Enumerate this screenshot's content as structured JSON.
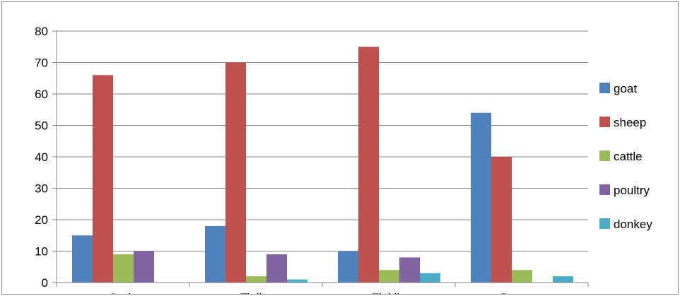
{
  "chart_data": {
    "type": "bar",
    "title": "",
    "xlabel": "",
    "ylabel": "",
    "categories": [
      "Gode",
      "Tinike",
      "Finkile",
      "Damota"
    ],
    "series": [
      {
        "name": "goat",
        "color": "#4F81BD",
        "values": [
          15,
          18,
          10,
          54
        ]
      },
      {
        "name": "sheep",
        "color": "#C0504D",
        "values": [
          66,
          70,
          75,
          40
        ]
      },
      {
        "name": "cattle",
        "color": "#9BBB59",
        "values": [
          9,
          2,
          4,
          4
        ]
      },
      {
        "name": "poultry",
        "color": "#8064A2",
        "values": [
          10,
          9,
          8,
          0
        ]
      },
      {
        "name": "donkey",
        "color": "#4BACC6",
        "values": [
          0,
          1,
          3,
          2
        ]
      }
    ],
    "ylim": [
      0,
      80
    ],
    "yticks": [
      0,
      10,
      20,
      30,
      40,
      50,
      60,
      70,
      80
    ],
    "grid": true,
    "legend_position": "right"
  }
}
